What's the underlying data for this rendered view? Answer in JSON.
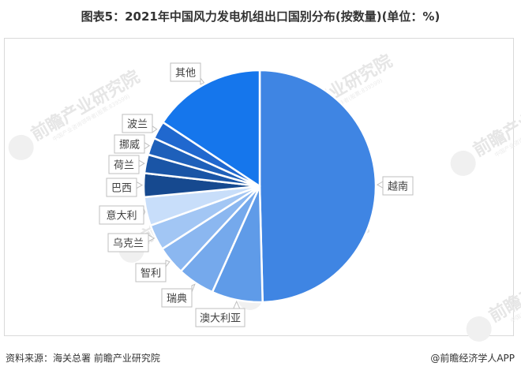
{
  "title": "图表5：2021年中国风力发电机组出口国别分布(按数量)(单位：%)",
  "source": "资料来源：海关总署 前瞻产业研究院",
  "credit": "@前瞻经济学人APP",
  "watermark": {
    "main": "前瞻产业研究院",
    "sub": "中国产业咨询领导者(股票:839599)"
  },
  "chart_data": {
    "type": "pie",
    "title": "2021年中国风力发电机组出口国别分布(按数量)(单位：%)",
    "unit": "%",
    "start_angle": "12 o'clock, clockwise",
    "categories": [
      "越南",
      "澳大利亚",
      "瑞典",
      "智利",
      "乌克兰",
      "意大利",
      "巴西",
      "荷兰",
      "挪威",
      "波兰",
      "其他"
    ],
    "values": [
      49.6,
      7.1,
      5.2,
      4.0,
      3.6,
      4.0,
      3.3,
      2.6,
      2.4,
      2.5,
      15.7
    ],
    "colors": [
      "#3f85e3",
      "#5f9be8",
      "#75a9ec",
      "#8bb7f0",
      "#a2c6f4",
      "#c8defa",
      "#16498f",
      "#1a55a6",
      "#1e60ba",
      "#2068cf",
      "#1576ec"
    ],
    "data_labels_shown": "category name only",
    "legend": "none"
  }
}
